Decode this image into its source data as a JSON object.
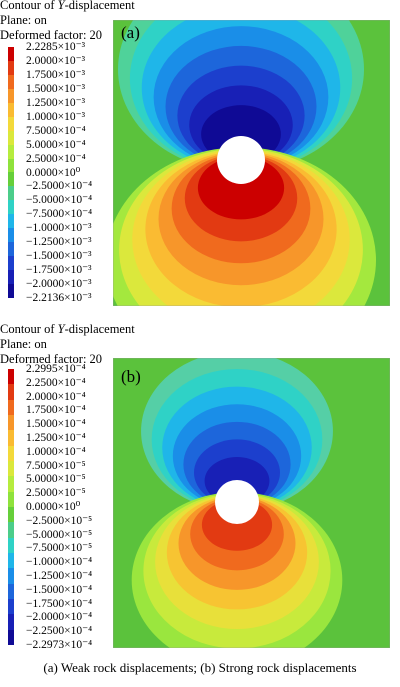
{
  "panels": [
    {
      "id": "a",
      "title_prefix": "Contour of ",
      "title_var": "Y",
      "title_suffix": "-displacement",
      "plane": "Plane: on",
      "deformed": "Deformed factor: 20",
      "label": "(a)",
      "legend": [
        "2.2285×10⁻³",
        "2.0000×10⁻³",
        "1.7500×10⁻³",
        "1.5000×10⁻³",
        "1.2500×10⁻³",
        "1.0000×10⁻³",
        "7.5000×10⁻⁴",
        "5.0000×10⁻⁴",
        "2.5000×10⁻⁴",
        "0.0000×10⁰",
        "−2.5000×10⁻⁴",
        "−5.0000×10⁻⁴",
        "−7.5000×10⁻⁴",
        "−1.0000×10⁻³",
        "−1.2500×10⁻³",
        "−1.5000×10⁻³",
        "−1.7500×10⁻³",
        "−2.0000×10⁻³",
        "−2.2136×10⁻³"
      ]
    },
    {
      "id": "b",
      "title_prefix": "Contour of ",
      "title_var": "Y",
      "title_suffix": "-displacement",
      "plane": "Plane: on",
      "deformed": "Deformed factor: 20",
      "label": "(b)",
      "legend": [
        "2.2995×10⁻⁴",
        "2.2500×10⁻⁴",
        "2.0000×10⁻⁴",
        "1.7500×10⁻⁴",
        "1.5000×10⁻⁴",
        "1.2500×10⁻⁴",
        "1.0000×10⁻⁴",
        "7.5000×10⁻⁵",
        "5.0000×10⁻⁵",
        "2.5000×10⁻⁵",
        "0.0000×10⁰",
        "−2.5000×10⁻⁵",
        "−5.0000×10⁻⁵",
        "−7.5000×10⁻⁵",
        "−1.0000×10⁻⁴",
        "−1.2500×10⁻⁴",
        "−1.5000×10⁻⁴",
        "−1.7500×10⁻⁴",
        "−2.0000×10⁻⁴",
        "−2.2500×10⁻⁴",
        "−2.2973×10⁻⁴"
      ]
    }
  ],
  "caption": "(a) Weak rock displacements; (b) Strong rock displacements",
  "colors": {
    "palette": [
      "#cc0000",
      "#e23a12",
      "#f06a1e",
      "#f7962a",
      "#fabb32",
      "#f3d93a",
      "#dbe83c",
      "#b6ec3e",
      "#8fe23c",
      "#66cf3a",
      "#4ccd8a",
      "#2fd2c6",
      "#1fb6e9",
      "#1a8ee8",
      "#1d66db",
      "#1c3fcd",
      "#1820b6",
      "#0f0a95"
    ],
    "background": "#5bc23c"
  }
}
